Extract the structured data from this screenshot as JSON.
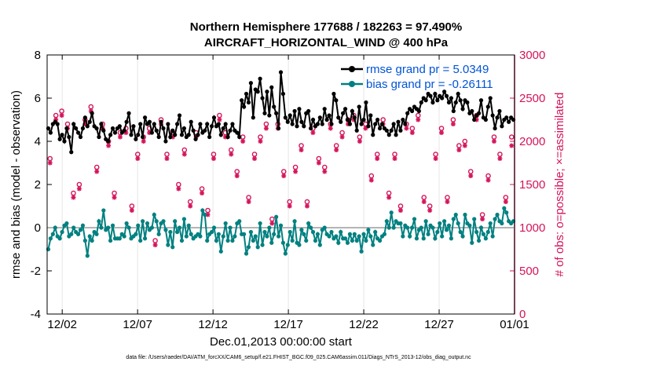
{
  "title_line1": "Northern Hemisphere 177688 / 182263 = 97.490%",
  "title_line2": "AIRCRAFT_HORIZONTAL_WIND @ 400 hPa",
  "footer": "data file: /Users/raeder/DAI/ATM_forcXX/CAM6_setup/f.e21.FHIST_BGC.f09_025.CAM6assim.011/Diags_NTrS_2013-12/obs_diag_output.nc",
  "colors": {
    "rmse": "#000000",
    "bias": "#008080",
    "obs": "#d4145a",
    "legend_text": "#0054d6",
    "zero_line": "#b4b4b4"
  },
  "chart_data": {
    "type": "line",
    "xlabel": "Dec.01,2013 00:00:00 start",
    "ylabel": "rmse and bias (model - observation)",
    "ylabel_right": "# of obs: o=possible; ×=assimilated",
    "xlim": [
      0,
      31
    ],
    "ylim": [
      -4,
      8
    ],
    "ylim_right": [
      0,
      3000
    ],
    "x_ticks": [
      1,
      6,
      11,
      16,
      21,
      26,
      31
    ],
    "x_tick_labels": [
      "12/02",
      "12/07",
      "12/12",
      "12/17",
      "12/22",
      "12/27",
      "01/01"
    ],
    "y_ticks": [
      -4,
      -2,
      0,
      2,
      4,
      6,
      8
    ],
    "y_tick_labels": [
      "-4",
      "-2",
      "0",
      "2",
      "4",
      "6",
      "8"
    ],
    "y_ticks_right": [
      0,
      500,
      1000,
      1500,
      2000,
      2500,
      3000
    ],
    "y_tick_labels_right": [
      "0",
      "500",
      "1000",
      "1500",
      "2000",
      "2500",
      "3000"
    ],
    "legend_position": "top-right",
    "series": [
      {
        "name": "rmse grand pr = 5.0349",
        "values": [
          4.6,
          4.4,
          4.8,
          4.9,
          4.8,
          4.1,
          4.3,
          4.0,
          4.6,
          4.2,
          3.5,
          4.8,
          4.6,
          4.4,
          4.2,
          4.6,
          5.1,
          4.7,
          4.9,
          5.3,
          4.7,
          4.6,
          4.2,
          4.8,
          4.5,
          4.1,
          4.0,
          4.3,
          4.6,
          4.4,
          4.6,
          4.7,
          4.4,
          4.5,
          4.9,
          5.3,
          4.3,
          4.7,
          4.1,
          4.3,
          4.8,
          4.2,
          5.1,
          4.8,
          4.9,
          4.4,
          4.8,
          4.5,
          4.2,
          4.9,
          4.6,
          4.0,
          4.8,
          4.2,
          4.5,
          4.3,
          4.8,
          5.2,
          4.3,
          4.6,
          4.2,
          4.3,
          4.9,
          4.5,
          4.1,
          4.3,
          4.8,
          4.4,
          4.5,
          4.8,
          4.2,
          4.7,
          5.1,
          4.7,
          4.8,
          4.3,
          4.6,
          4.8,
          4.2,
          4.5,
          4.8,
          4.5,
          4.4,
          4.2,
          5.9,
          5.6,
          6.2,
          5.8,
          6.7,
          5.1,
          6.4,
          6.3,
          6.9,
          6.0,
          5.3,
          6.3,
          5.2,
          6.5,
          5.6,
          5.3,
          4.6,
          7.2,
          6.2,
          5.1,
          4.9,
          5.2,
          4.8,
          5.4,
          4.7,
          5.5,
          4.9,
          4.7,
          5.3,
          5.4,
          4.6,
          5.0,
          4.7,
          4.8,
          5.1,
          4.8,
          5.5,
          5.0,
          5.2,
          4.8,
          6.2,
          5.9,
          5.1,
          4.9,
          5.3,
          5.5,
          5.0,
          4.8,
          5.4,
          5.1,
          4.5,
          5.6,
          4.8,
          5.0,
          5.8,
          4.7,
          5.2,
          4.3,
          4.8,
          5.0,
          4.6,
          4.8,
          4.6,
          4.5,
          4.3,
          4.5,
          4.8,
          4.3,
          4.9,
          4.5,
          5.0,
          4.8,
          5.3,
          5.5,
          5.4,
          5.6,
          5.5,
          5.4,
          5.8,
          6.0,
          5.9,
          6.2,
          6.1,
          5.8,
          6.2,
          5.9,
          6.1,
          6.0,
          6.3,
          6.1,
          5.8,
          6.0,
          5.4,
          5.8,
          6.2,
          5.9,
          5.5,
          5.9,
          5.8,
          5.3,
          5.4,
          5.0,
          5.2,
          5.3,
          5.9,
          5.1,
          5.0,
          5.6,
          6.0,
          5.2,
          4.6,
          5.1,
          5.4,
          4.7,
          5.0,
          5.1,
          4.9,
          5.1,
          5.0
        ]
      },
      {
        "name": "bias grand pr = -0.26111",
        "values": [
          -1.0,
          -0.5,
          -0.3,
          0.0,
          -0.4,
          -0.5,
          -0.2,
          0.1,
          0.2,
          -0.4,
          -0.3,
          0.0,
          -0.2,
          -0.3,
          -0.1,
          0.1,
          -0.6,
          -1.3,
          -0.4,
          -0.6,
          -0.2,
          -0.3,
          0.3,
          0.0,
          0.8,
          -0.1,
          0.0,
          -0.6,
          0.1,
          -0.5,
          -0.5,
          -0.5,
          -0.3,
          -0.4,
          0.2,
          0.0,
          -0.5,
          -0.4,
          -0.3,
          0.1,
          -0.6,
          0.3,
          -0.5,
          0.2,
          -0.1,
          0.0,
          0.6,
          0.3,
          -0.3,
          0.2,
          0.3,
          -0.1,
          -0.8,
          -0.2,
          -0.9,
          0.3,
          -0.2,
          0.0,
          -0.6,
          0.4,
          -0.4,
          0.1,
          -0.3,
          -0.5,
          -0.4,
          -0.3,
          -0.4,
          0.8,
          0.6,
          -0.6,
          -0.3,
          -0.2,
          0.0,
          -0.6,
          -0.3,
          -1.1,
          -0.4,
          0.2,
          -0.6,
          0.0,
          -0.6,
          -0.4,
          0.2,
          0.3,
          -0.3,
          -0.3,
          -1.2,
          -0.9,
          -0.2,
          -0.6,
          -0.4,
          -0.9,
          0.2,
          -0.8,
          -0.2,
          -0.4,
          0.0,
          -0.7,
          -0.3,
          0.5,
          -0.4,
          0.1,
          -0.7,
          -1.2,
          -0.8,
          -0.2,
          -0.6,
          0.3,
          -0.7,
          -0.8,
          -0.1,
          -0.3,
          -0.6,
          0.2,
          0.0,
          -0.2,
          -0.6,
          -0.3,
          -0.8,
          -0.1,
          0.0,
          -0.3,
          -0.4,
          -0.2,
          -0.5,
          -0.4,
          -0.7,
          -0.2,
          -0.5,
          -0.5,
          -0.7,
          -0.3,
          -0.6,
          -0.3,
          -0.6,
          -0.4,
          -1.1,
          -0.3,
          -0.6,
          -0.1,
          -0.4,
          -0.8,
          -0.2,
          -0.5,
          -0.6,
          -0.4,
          -0.3,
          0.3,
          0.0,
          0.7,
          0.0,
          0.3,
          0.2,
          0.2,
          -0.4,
          0.1,
          0.0,
          -0.4,
          0.0,
          0.4,
          -0.5,
          -0.1,
          0.0,
          -0.5,
          0.3,
          -0.3,
          0.1,
          0.0,
          -0.5,
          -0.2,
          0.2,
          -0.4,
          0.3,
          -0.1,
          0.1,
          -0.5,
          0.4,
          0.6,
          0.2,
          -0.2,
          -0.4,
          0.6,
          0.2,
          0.1,
          -0.7,
          0.4,
          -0.2,
          -0.6,
          0.0,
          -0.3,
          -0.5,
          -0.2,
          0.2,
          -0.4,
          0.4,
          0.6,
          0.3,
          0.2,
          0.9,
          0.7,
          0.3,
          0.2,
          0.3
        ]
      },
      {
        "name": "obs possible",
        "values": [
          1800,
          2300,
          2350,
          2200,
          1400,
          1500,
          2250,
          2400,
          1700,
          2200,
          2000,
          1400,
          2100,
          2150,
          1250,
          1850,
          2050,
          2150,
          850,
          2250,
          1850,
          2100,
          1500,
          1900,
          1300,
          2100,
          1450,
          1200,
          1850,
          2300,
          2100,
          1900,
          1650,
          2050,
          1350,
          1850,
          2050,
          2200,
          1100,
          2200,
          1650,
          1300,
          1700,
          1950,
          1300,
          2150,
          1800,
          1700,
          2200,
          1950,
          2100,
          2250,
          2300,
          2050,
          2200,
          1600,
          1850,
          2250,
          1400,
          1850,
          1250,
          2200,
          2150,
          2300,
          1350,
          1250,
          1850,
          2150,
          1350,
          2250,
          1950,
          2000,
          1650,
          2300,
          1150,
          1600,
          2050,
          1850,
          1350,
          2050
        ]
      },
      {
        "name": "obs assimilated",
        "values": [
          1750,
          2250,
          2300,
          2150,
          1350,
          1450,
          2200,
          2350,
          1650,
          2150,
          1950,
          1350,
          2050,
          2100,
          1200,
          1800,
          2000,
          2100,
          800,
          2200,
          1800,
          2050,
          1450,
          1850,
          1250,
          2050,
          1400,
          1150,
          1800,
          2250,
          2050,
          1850,
          1600,
          2000,
          1300,
          1800,
          2000,
          2150,
          1050,
          2150,
          1600,
          1250,
          1650,
          1900,
          1250,
          2100,
          1750,
          1650,
          2150,
          1900,
          2050,
          2200,
          2250,
          2000,
          2150,
          1550,
          1800,
          2200,
          1350,
          1800,
          1200,
          2150,
          2100,
          2250,
          1300,
          1200,
          1800,
          2100,
          1300,
          2200,
          1900,
          1950,
          1600,
          2250,
          1100,
          1550,
          2000,
          1800,
          1300,
          1950
        ]
      }
    ]
  }
}
